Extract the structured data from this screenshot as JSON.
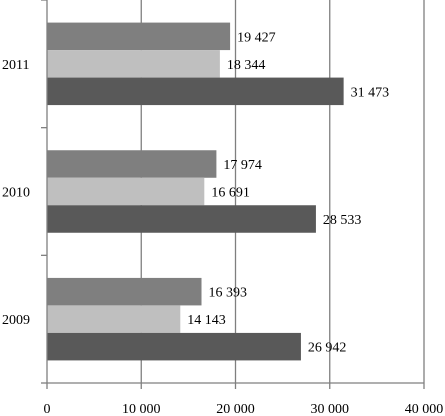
{
  "chart_data": {
    "type": "bar",
    "orientation": "horizontal",
    "title": "",
    "xlabel": "",
    "ylabel": "",
    "categories": [
      "2011",
      "2010",
      "2009"
    ],
    "series": [
      {
        "values": [
          19427,
          17974,
          16393
        ],
        "labels": [
          "19 427",
          "17 974",
          "16 393"
        ],
        "color": "#7f7f7f"
      },
      {
        "values": [
          18344,
          16691,
          14143
        ],
        "labels": [
          "18 344",
          "16 691",
          "14 143"
        ],
        "color": "#bfbfbf"
      },
      {
        "values": [
          31473,
          28533,
          26942
        ],
        "labels": [
          "31 473",
          "28 533",
          "26 942"
        ],
        "color": "#595959"
      }
    ],
    "xlim": [
      0,
      40000
    ],
    "xticks": [
      0,
      10000,
      20000,
      30000,
      40000
    ],
    "xtick_labels": [
      "0",
      "10 000",
      "20 000",
      "30 000",
      "40 000"
    ],
    "grid": true,
    "legend": "none"
  }
}
